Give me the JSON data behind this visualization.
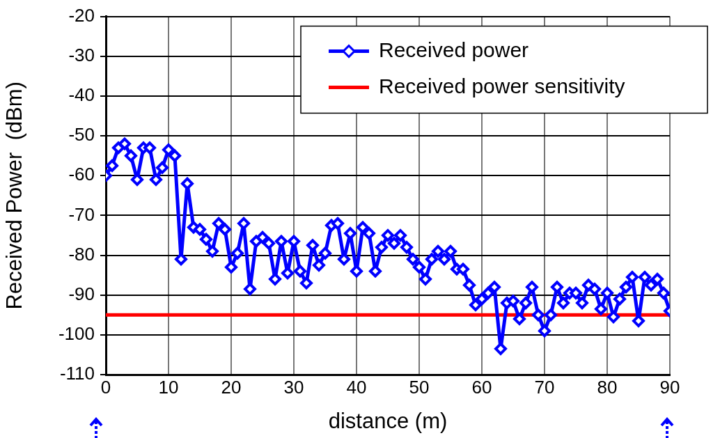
{
  "chart_data": {
    "type": "line",
    "xlabel": "distance (m)",
    "ylabel": "Received Power  (dBm)",
    "xlim": [
      0,
      90
    ],
    "xticks": [
      0,
      10,
      20,
      30,
      40,
      50,
      60,
      70,
      80,
      90
    ],
    "ylim": [
      -110,
      -20
    ],
    "yticks": [
      -110,
      -100,
      -90,
      -80,
      -70,
      -60,
      -50,
      -40,
      -30,
      -20
    ],
    "grid": true,
    "legend": "top right",
    "series": [
      {
        "name": "Received power",
        "color": "#0000ff",
        "marker": "diamond",
        "x": [
          0,
          1,
          2,
          3,
          4,
          5,
          6,
          7,
          8,
          9,
          10,
          11,
          12,
          13,
          14,
          15,
          16,
          17,
          18,
          19,
          20,
          21,
          22,
          23,
          24,
          25,
          26,
          27,
          28,
          29,
          30,
          31,
          32,
          33,
          34,
          35,
          36,
          37,
          38,
          39,
          40,
          41,
          42,
          43,
          44,
          45,
          46,
          47,
          48,
          49,
          50,
          51,
          52,
          53,
          54,
          55,
          56,
          57,
          58,
          59,
          60,
          61,
          62,
          63,
          64,
          65,
          66,
          67,
          68,
          69,
          70,
          71,
          72,
          73,
          74,
          75,
          76,
          77,
          78,
          79,
          80,
          81,
          82,
          83,
          84,
          85,
          86,
          87,
          88,
          89,
          90
        ],
        "values": [
          -60,
          -57.5,
          -53,
          -52,
          -55,
          -61,
          -53,
          -53,
          -61,
          -58,
          -53.5,
          -55,
          -81,
          -62,
          -73,
          -73.5,
          -76,
          -79,
          -72,
          -73.5,
          -83,
          -79.5,
          -72,
          -88.5,
          -76.5,
          -75.5,
          -77,
          -86,
          -76.5,
          -84.5,
          -76.5,
          -84,
          -87,
          -77.5,
          -82.5,
          -79.5,
          -72.5,
          -72,
          -81,
          -74.5,
          -84,
          -73,
          -74.5,
          -84,
          -78,
          -75,
          -77,
          -75,
          -78,
          -81,
          -83,
          -86,
          -81,
          -79,
          -81,
          -79,
          -83.5,
          -83.5,
          -87.5,
          -92.5,
          -91,
          -89.5,
          -88,
          -103.5,
          -92,
          -91.5,
          -96,
          -92,
          -88,
          -95,
          -99,
          -95,
          -88,
          -92,
          -89.5,
          -89.5,
          -92,
          -87.5,
          -88.5,
          -93.5,
          -89.5,
          -95.5,
          -91,
          -88,
          -85.5,
          -96.5,
          -85.5,
          -87.5,
          -86,
          -89.5,
          -94
        ]
      },
      {
        "name": "Received power sensitivity",
        "color": "#ff0000",
        "marker": "none",
        "x": [
          0,
          90
        ],
        "values": [
          -95,
          -95
        ]
      }
    ]
  }
}
